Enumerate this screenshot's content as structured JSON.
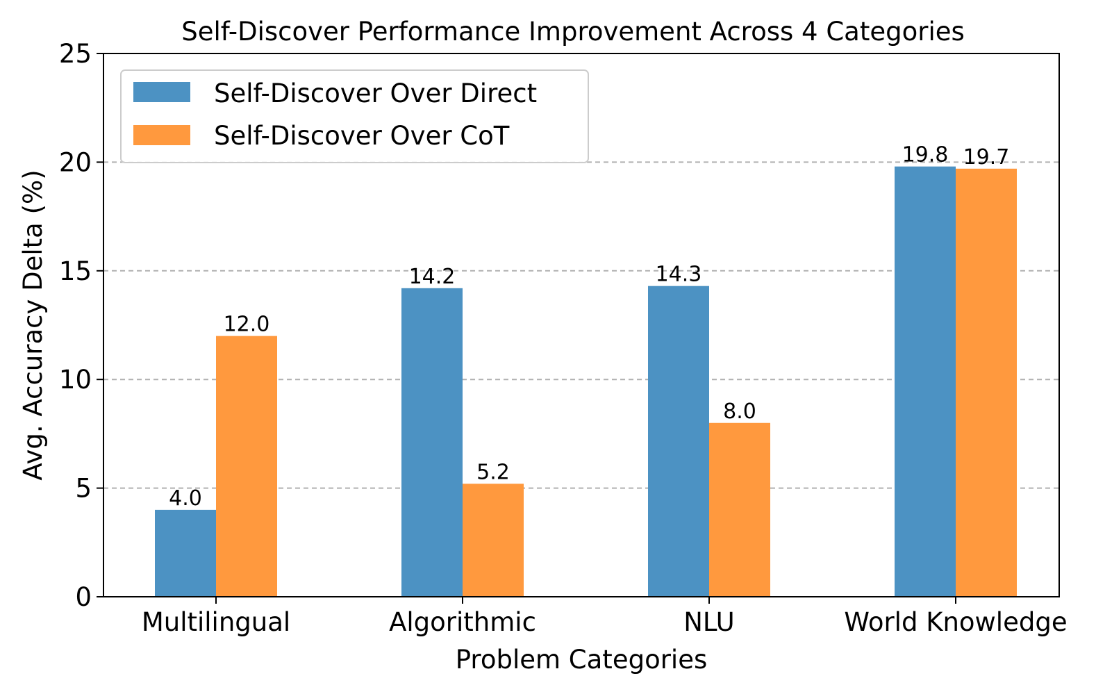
{
  "chart_data": {
    "type": "bar",
    "title": "Self-Discover Performance Improvement Across 4 Categories",
    "xlabel": "Problem Categories",
    "ylabel": "Avg. Accuracy Delta (%)",
    "categories": [
      "Multilingual",
      "Algorithmic",
      "NLU",
      "World Knowledge"
    ],
    "series": [
      {
        "name": "Self-Discover Over Direct",
        "color": "#4c92c3",
        "values": [
          4.0,
          14.2,
          14.3,
          19.8
        ],
        "labels": [
          "4.0",
          "14.2",
          "14.3",
          "19.8"
        ]
      },
      {
        "name": "Self-Discover Over CoT",
        "color": "#ff993e",
        "values": [
          12.0,
          5.2,
          8.0,
          19.7
        ],
        "labels": [
          "12.0",
          "5.2",
          "8.0",
          "19.7"
        ]
      }
    ],
    "ylim": [
      0,
      25
    ],
    "yticks": [
      0,
      5,
      10,
      15,
      20,
      25
    ],
    "ytick_labels": [
      "0",
      "5",
      "10",
      "15",
      "20",
      "25"
    ],
    "grid": "horizontal dashed at y-ticks 5, 10, 15, 20",
    "legend_position": "top-left"
  }
}
